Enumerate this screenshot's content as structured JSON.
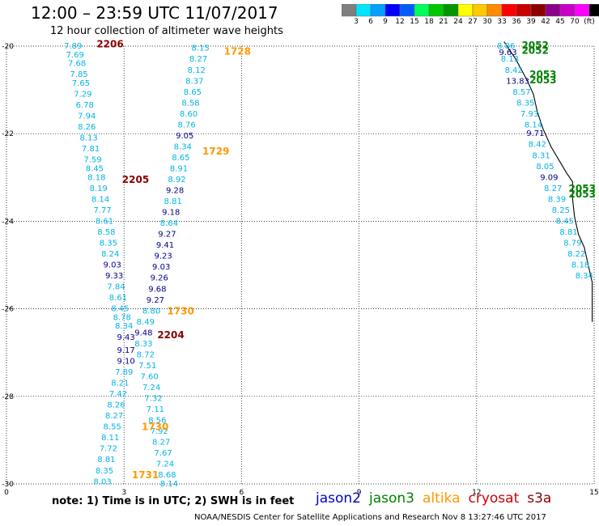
{
  "header": {
    "title": "12:00 – 23:59 UTC 11/07/2017",
    "subtitle": "12 hour collection of altimeter wave heights"
  },
  "colorbar": {
    "colors": [
      "#7f7f7f",
      "#00e5ff",
      "#00a0ff",
      "#0000ff",
      "#005aff",
      "#00ff5a",
      "#00c800",
      "#009600",
      "#ffff00",
      "#ffc800",
      "#ff8c00",
      "#ff0000",
      "#c80000",
      "#8c0000",
      "#8c008c",
      "#c800c8",
      "#ff00ff",
      "#000000"
    ],
    "labels": [
      "3",
      "6",
      "9",
      "12",
      "15",
      "18",
      "21",
      "24",
      "27",
      "30",
      "33",
      "36",
      "39",
      "42",
      "45",
      "70",
      "(ft)"
    ]
  },
  "axes": {
    "lon_ticks": [
      "0",
      "3",
      "6",
      "9",
      "12",
      "15"
    ],
    "lat_ticks": [
      "-20",
      "-22",
      "-24",
      "-26",
      "-28",
      "-30"
    ],
    "lon_range": [
      0,
      15
    ],
    "lat_range": [
      -30,
      -20
    ]
  },
  "map": {
    "satellite_colors": {
      "jason2": "#0000cc",
      "jason3": "#008000",
      "altika": "#ff9900",
      "cryosat": "#cc0000",
      "s3a": "#8b0000"
    },
    "height_colors": {
      "low": "#00b4e6",
      "high": "#00008b"
    },
    "tracks": [
      {
        "id": "left",
        "points": [
          {
            "lon": 1.7,
            "lat": -20.0,
            "v": "7.89"
          },
          {
            "lon": 1.75,
            "lat": -20.2,
            "v": "7.69"
          },
          {
            "lon": 1.8,
            "lat": -20.4,
            "v": "7.68"
          },
          {
            "lon": 1.85,
            "lat": -20.65,
            "v": "7.85"
          },
          {
            "lon": 1.9,
            "lat": -20.85,
            "v": "7.65"
          },
          {
            "lon": 1.95,
            "lat": -21.1,
            "v": "7.29"
          },
          {
            "lon": 2.0,
            "lat": -21.35,
            "v": "6.78"
          },
          {
            "lon": 2.05,
            "lat": -21.6,
            "v": "7.94"
          },
          {
            "lon": 2.05,
            "lat": -21.85,
            "v": "8.26"
          },
          {
            "lon": 2.1,
            "lat": -22.1,
            "v": "8.13"
          },
          {
            "lon": 2.15,
            "lat": -22.35,
            "v": "7.81"
          },
          {
            "lon": 2.2,
            "lat": -22.6,
            "v": "7.59"
          },
          {
            "lon": 2.25,
            "lat": -22.8,
            "v": "8.45"
          },
          {
            "lon": 2.3,
            "lat": -23.0,
            "v": "8.18"
          },
          {
            "lon": 2.35,
            "lat": -23.25,
            "v": "8.19"
          },
          {
            "lon": 2.4,
            "lat": -23.5,
            "v": "8.14"
          },
          {
            "lon": 2.45,
            "lat": -23.75,
            "v": "7.77"
          },
          {
            "lon": 2.5,
            "lat": -24.0,
            "v": "8.61"
          },
          {
            "lon": 2.55,
            "lat": -24.25,
            "v": "8.58"
          },
          {
            "lon": 2.6,
            "lat": -24.5,
            "v": "8.35"
          },
          {
            "lon": 2.65,
            "lat": -24.75,
            "v": "8.24"
          },
          {
            "lon": 2.7,
            "lat": -25.0,
            "v": "9.03"
          },
          {
            "lon": 2.75,
            "lat": -25.25,
            "v": "9.33"
          },
          {
            "lon": 2.8,
            "lat": -25.5,
            "v": "7.84"
          },
          {
            "lon": 2.85,
            "lat": -25.75,
            "v": "8.61"
          },
          {
            "lon": 2.9,
            "lat": -26.0,
            "v": "8.45"
          },
          {
            "lon": 2.95,
            "lat": -26.2,
            "v": "8.78"
          },
          {
            "lon": 3.0,
            "lat": -26.4,
            "v": "8.34"
          },
          {
            "lon": 3.05,
            "lat": -26.65,
            "v": "9.43"
          },
          {
            "lon": 3.05,
            "lat": -26.95,
            "v": "9.17"
          },
          {
            "lon": 3.05,
            "lat": -27.2,
            "v": "9.10"
          },
          {
            "lon": 3.0,
            "lat": -27.45,
            "v": "7.89"
          },
          {
            "lon": 2.9,
            "lat": -27.7,
            "v": "8.21"
          },
          {
            "lon": 2.85,
            "lat": -27.95,
            "v": "7.42"
          },
          {
            "lon": 2.8,
            "lat": -28.2,
            "v": "8.26"
          },
          {
            "lon": 2.75,
            "lat": -28.45,
            "v": "8.27"
          },
          {
            "lon": 2.7,
            "lat": -28.7,
            "v": "8.55"
          },
          {
            "lon": 2.65,
            "lat": -28.95,
            "v": "8.11"
          },
          {
            "lon": 2.6,
            "lat": -29.2,
            "v": "7.72"
          },
          {
            "lon": 2.55,
            "lat": -29.45,
            "v": "8.81"
          },
          {
            "lon": 2.5,
            "lat": -29.7,
            "v": "8.35"
          },
          {
            "lon": 2.45,
            "lat": -29.95,
            "v": "8.03"
          }
        ]
      },
      {
        "id": "middle",
        "points": [
          {
            "lon": 4.95,
            "lat": -20.05,
            "v": "8.15"
          },
          {
            "lon": 4.9,
            "lat": -20.3,
            "v": "8.27"
          },
          {
            "lon": 4.85,
            "lat": -20.55,
            "v": "8.12"
          },
          {
            "lon": 4.8,
            "lat": -20.8,
            "v": "8.37"
          },
          {
            "lon": 4.75,
            "lat": -21.05,
            "v": "8.65"
          },
          {
            "lon": 4.7,
            "lat": -21.3,
            "v": "8.58"
          },
          {
            "lon": 4.65,
            "lat": -21.55,
            "v": "8.60"
          },
          {
            "lon": 4.6,
            "lat": -21.8,
            "v": "8.76"
          },
          {
            "lon": 4.55,
            "lat": -22.05,
            "v": "9.05"
          },
          {
            "lon": 4.5,
            "lat": -22.3,
            "v": "8.34"
          },
          {
            "lon": 4.45,
            "lat": -22.55,
            "v": "8.65"
          },
          {
            "lon": 4.4,
            "lat": -22.8,
            "v": "8.91"
          },
          {
            "lon": 4.35,
            "lat": -23.05,
            "v": "8.92"
          },
          {
            "lon": 4.3,
            "lat": -23.3,
            "v": "9.28"
          },
          {
            "lon": 4.25,
            "lat": -23.55,
            "v": "8.81"
          },
          {
            "lon": 4.2,
            "lat": -23.8,
            "v": "9.18"
          },
          {
            "lon": 4.15,
            "lat": -24.05,
            "v": "8.64"
          },
          {
            "lon": 4.1,
            "lat": -24.3,
            "v": "9.27"
          },
          {
            "lon": 4.05,
            "lat": -24.55,
            "v": "9.41"
          },
          {
            "lon": 4.0,
            "lat": -24.8,
            "v": "9.23"
          },
          {
            "lon": 3.95,
            "lat": -25.05,
            "v": "9.03"
          },
          {
            "lon": 3.9,
            "lat": -25.3,
            "v": "9.26"
          },
          {
            "lon": 3.85,
            "lat": -25.55,
            "v": "9.68"
          },
          {
            "lon": 3.8,
            "lat": -25.8,
            "v": "9.27"
          },
          {
            "lon": 3.7,
            "lat": -26.05,
            "v": "8.80"
          },
          {
            "lon": 3.55,
            "lat": -26.3,
            "v": "8.49"
          },
          {
            "lon": 3.5,
            "lat": -26.55,
            "v": "9.48"
          },
          {
            "lon": 3.5,
            "lat": -26.8,
            "v": "8.33"
          },
          {
            "lon": 3.55,
            "lat": -27.05,
            "v": "8.72"
          },
          {
            "lon": 3.6,
            "lat": -27.3,
            "v": "7.51"
          },
          {
            "lon": 3.65,
            "lat": -27.55,
            "v": "7.60"
          },
          {
            "lon": 3.7,
            "lat": -27.8,
            "v": "7.24"
          },
          {
            "lon": 3.75,
            "lat": -28.05,
            "v": "7.32"
          },
          {
            "lon": 3.8,
            "lat": -28.3,
            "v": "7.11"
          },
          {
            "lon": 3.85,
            "lat": -28.55,
            "v": "8.56"
          },
          {
            "lon": 3.9,
            "lat": -28.8,
            "v": "7.92"
          },
          {
            "lon": 3.95,
            "lat": -29.05,
            "v": "8.27"
          },
          {
            "lon": 4.0,
            "lat": -29.3,
            "v": "7.67"
          },
          {
            "lon": 4.05,
            "lat": -29.55,
            "v": "7.24"
          },
          {
            "lon": 4.1,
            "lat": -29.8,
            "v": "8.68"
          },
          {
            "lon": 4.15,
            "lat": -30.0,
            "v": "8.14"
          }
        ]
      },
      {
        "id": "east",
        "points": [
          {
            "lon": 12.75,
            "lat": -20.0,
            "v": "8.86"
          },
          {
            "lon": 12.8,
            "lat": -20.15,
            "v": "9.63"
          },
          {
            "lon": 12.85,
            "lat": -20.3,
            "v": "8.13"
          },
          {
            "lon": 12.95,
            "lat": -20.55,
            "v": "8.42"
          },
          {
            "lon": 13.05,
            "lat": -20.8,
            "v": "13.83"
          },
          {
            "lon": 13.15,
            "lat": -21.05,
            "v": "8.57"
          },
          {
            "lon": 13.25,
            "lat": -21.3,
            "v": "8.35"
          },
          {
            "lon": 13.35,
            "lat": -21.55,
            "v": "7.93"
          },
          {
            "lon": 13.45,
            "lat": -21.8,
            "v": "8.14"
          },
          {
            "lon": 13.5,
            "lat": -22.0,
            "v": "9.71"
          },
          {
            "lon": 13.55,
            "lat": -22.25,
            "v": "8.42"
          },
          {
            "lon": 13.65,
            "lat": -22.5,
            "v": "8.31"
          },
          {
            "lon": 13.75,
            "lat": -22.75,
            "v": "8.05"
          },
          {
            "lon": 13.85,
            "lat": -23.0,
            "v": "9.09"
          },
          {
            "lon": 13.95,
            "lat": -23.25,
            "v": "8.27"
          },
          {
            "lon": 14.05,
            "lat": -23.5,
            "v": "8.39"
          },
          {
            "lon": 14.15,
            "lat": -23.75,
            "v": "8.25"
          },
          {
            "lon": 14.25,
            "lat": -24.0,
            "v": "8.45"
          },
          {
            "lon": 14.35,
            "lat": -24.25,
            "v": "8.81"
          },
          {
            "lon": 14.45,
            "lat": -24.5,
            "v": "8.79"
          },
          {
            "lon": 14.55,
            "lat": -24.75,
            "v": "8.22"
          },
          {
            "lon": 14.65,
            "lat": -25.0,
            "v": "8.18"
          },
          {
            "lon": 14.75,
            "lat": -25.25,
            "v": "8.34"
          }
        ]
      }
    ],
    "pass_labels": [
      {
        "lon": 2.3,
        "lat": -19.95,
        "text": "2206",
        "sat": "s3a"
      },
      {
        "lon": 5.55,
        "lat": -20.12,
        "text": "1728",
        "sat": "altika"
      },
      {
        "lon": 5.0,
        "lat": -22.4,
        "text": "1729",
        "sat": "altika"
      },
      {
        "lon": 2.95,
        "lat": -23.05,
        "text": "2205",
        "sat": "s3a"
      },
      {
        "lon": 4.1,
        "lat": -26.05,
        "text": "1730",
        "sat": "altika"
      },
      {
        "lon": 3.85,
        "lat": -26.6,
        "text": "2204",
        "sat": "s3a"
      },
      {
        "lon": 3.45,
        "lat": -28.7,
        "text": "1730",
        "sat": "altika"
      },
      {
        "lon": 3.2,
        "lat": -29.8,
        "text": "1731",
        "sat": "altika"
      },
      {
        "lon": 13.15,
        "lat": -19.98,
        "text": "2052",
        "sat": "jason3"
      },
      {
        "lon": 13.15,
        "lat": -20.1,
        "text": "2052",
        "sat": "jason3"
      },
      {
        "lon": 13.35,
        "lat": -20.65,
        "text": "2053",
        "sat": "jason3"
      },
      {
        "lon": 13.35,
        "lat": -20.78,
        "text": "2053",
        "sat": "jason3"
      },
      {
        "lon": 14.35,
        "lat": -23.25,
        "text": "2053",
        "sat": "jason3"
      },
      {
        "lon": 14.35,
        "lat": -23.38,
        "text": "2053",
        "sat": "jason3"
      }
    ],
    "coastline": [
      [
        12.7,
        -19.9
      ],
      [
        13.0,
        -20.3
      ],
      [
        13.3,
        -20.8
      ],
      [
        13.45,
        -21.1
      ],
      [
        13.55,
        -21.5
      ],
      [
        13.7,
        -21.9
      ],
      [
        13.9,
        -22.3
      ],
      [
        14.1,
        -22.6
      ],
      [
        14.3,
        -22.9
      ],
      [
        14.45,
        -23.1
      ],
      [
        14.45,
        -23.5
      ],
      [
        14.5,
        -23.9
      ],
      [
        14.6,
        -24.3
      ],
      [
        14.75,
        -24.6
      ],
      [
        14.85,
        -25.0
      ],
      [
        14.95,
        -25.4
      ],
      [
        14.95,
        -25.8
      ],
      [
        14.95,
        -26.3
      ]
    ]
  },
  "footer": {
    "note": "note:  1) Time is in UTC;  2) SWH is in feet",
    "legend": [
      {
        "key": "jason2",
        "label": "jason2"
      },
      {
        "key": "jason3",
        "label": "jason3"
      },
      {
        "key": "altika",
        "label": "altika"
      },
      {
        "key": "cryosat",
        "label": "cryosat"
      },
      {
        "key": "s3a",
        "label": "s3a"
      }
    ],
    "credit": "NOAA/NESDIS Center for Satellite Applications and Research    Nov  8 13:27:46 UTC 2017"
  }
}
